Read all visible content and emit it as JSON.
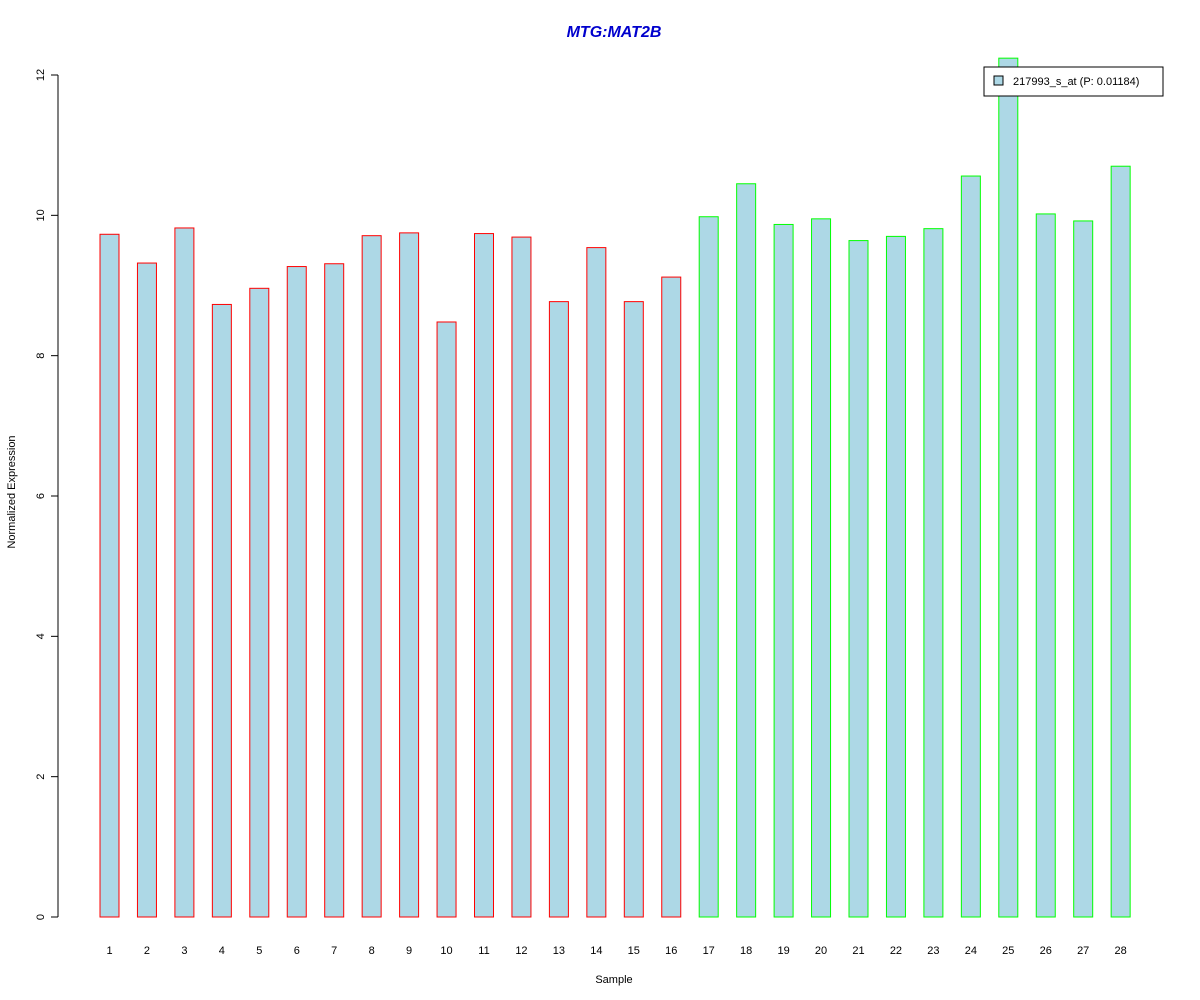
{
  "chart_data": {
    "type": "bar",
    "title": "MTG:MAT2B",
    "xlabel": "Sample",
    "ylabel": "Normalized Expression",
    "ylim": [
      0,
      12
    ],
    "yticks": [
      0,
      2,
      4,
      6,
      8,
      10,
      12
    ],
    "categories": [
      "1",
      "2",
      "3",
      "4",
      "5",
      "6",
      "7",
      "8",
      "9",
      "10",
      "11",
      "12",
      "13",
      "14",
      "15",
      "16",
      "17",
      "18",
      "19",
      "20",
      "21",
      "22",
      "23",
      "24",
      "25",
      "26",
      "27",
      "28"
    ],
    "series": [
      {
        "name": "217993_s_at (P: 0.01184)",
        "values": [
          9.73,
          9.32,
          9.82,
          8.73,
          8.96,
          9.27,
          9.31,
          9.71,
          9.75,
          8.48,
          9.74,
          9.69,
          8.77,
          9.54,
          8.77,
          9.12,
          9.98,
          10.45,
          9.87,
          9.95,
          9.64,
          9.7,
          9.81,
          10.56,
          12.24,
          10.02,
          9.92,
          10.7
        ],
        "groups": [
          1,
          1,
          1,
          1,
          1,
          1,
          1,
          1,
          1,
          1,
          1,
          1,
          1,
          1,
          1,
          1,
          2,
          2,
          2,
          2,
          2,
          2,
          2,
          2,
          2,
          2,
          2,
          2
        ]
      }
    ],
    "legend": {
      "position": "top-right",
      "label": "217993_s_at (P: 0.01184)"
    },
    "grid": false,
    "colors": {
      "bar_fill": "#add8e6",
      "group1_border": "#ff0000",
      "group2_border": "#00ff00",
      "title": "#0000cd",
      "axis": "#000000"
    }
  }
}
